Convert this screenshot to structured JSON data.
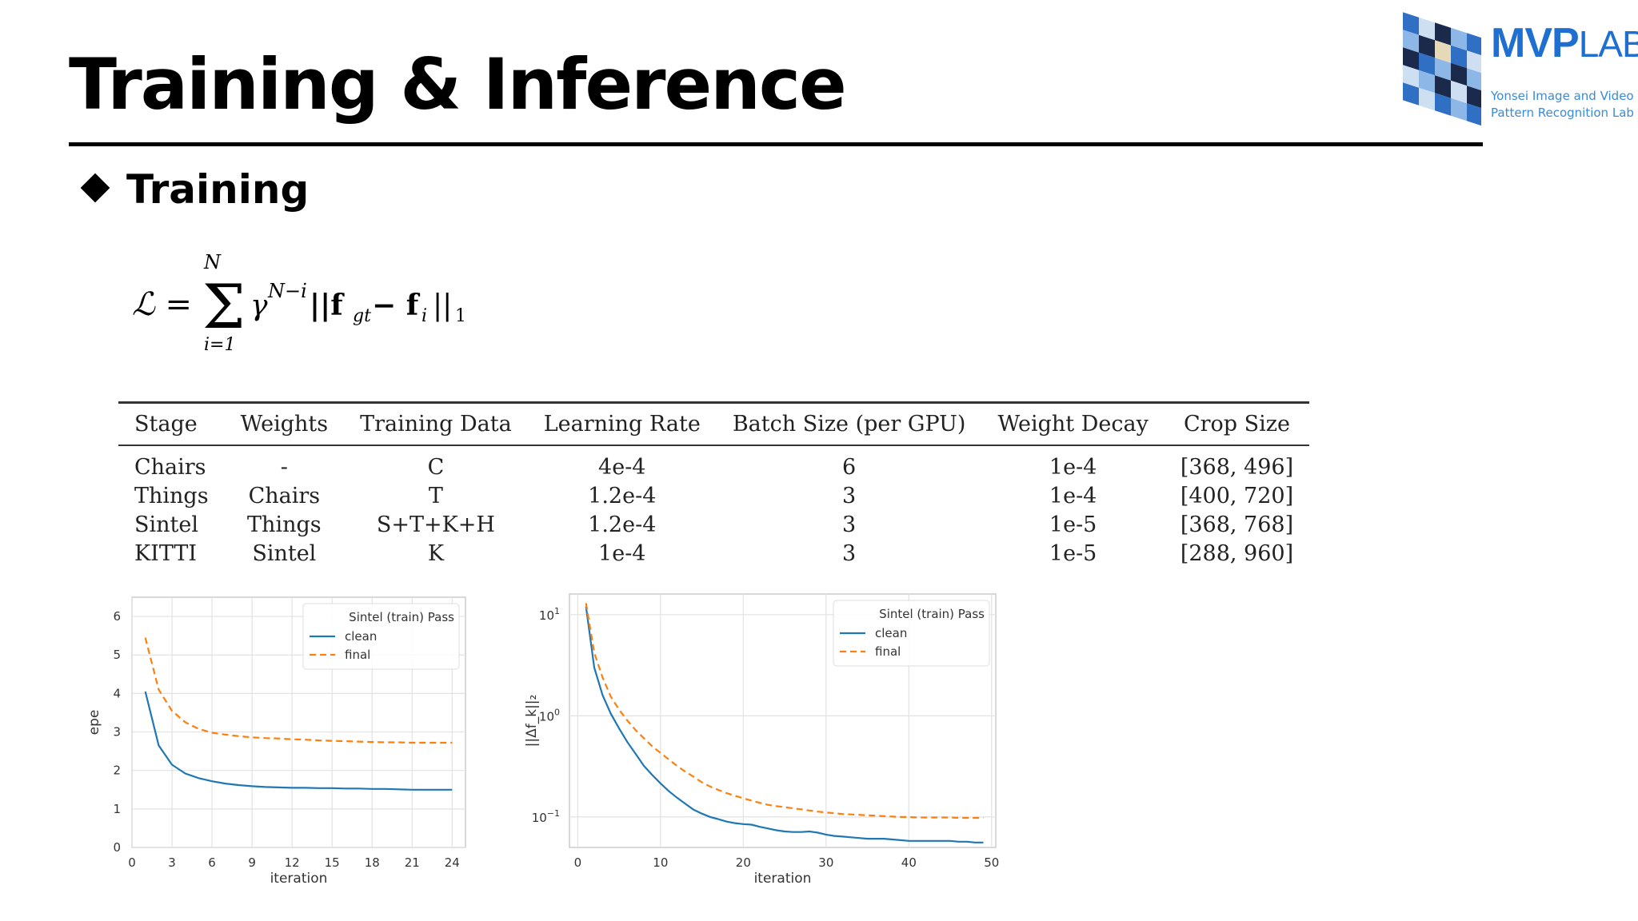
{
  "slide": {
    "title": "Training & Inference",
    "section": "Training"
  },
  "logo": {
    "word_bold": "MVP",
    "word_light": "LAB",
    "sub_line1": "Yonsei Image and Video",
    "sub_line2": "Pattern Recognition Lab",
    "brand_color": "#1f6fd0"
  },
  "formula": {
    "lhs": "ℒ = ",
    "upper_limit": "N",
    "lower_limit": "i=1",
    "body": "γ",
    "exponent": "N−i",
    "norm_open": "||f",
    "gt_sub": "gt",
    "minus": " − f",
    "i_sub": "i",
    "norm_close": "||",
    "norm_sub": "1"
  },
  "table": {
    "headers": [
      "Stage",
      "Weights",
      "Training Data",
      "Learning Rate",
      "Batch Size (per GPU)",
      "Weight Decay",
      "Crop Size"
    ],
    "rows": [
      [
        "Chairs",
        "-",
        "C",
        "4e-4",
        "6",
        "1e-4",
        "[368, 496]"
      ],
      [
        "Things",
        "Chairs",
        "T",
        "1.2e-4",
        "3",
        "1e-4",
        "[400, 720]"
      ],
      [
        "Sintel",
        "Things",
        "S+T+K+H",
        "1.2e-4",
        "3",
        "1e-5",
        "[368, 768]"
      ],
      [
        "KITTI",
        "Sintel",
        "K",
        "1e-4",
        "3",
        "1e-5",
        "[288, 960]"
      ]
    ]
  },
  "chart_data": [
    {
      "type": "line",
      "xlabel": "iteration",
      "ylabel": "epe",
      "xlim": [
        0,
        25
      ],
      "ylim": [
        0,
        6.5
      ],
      "xticks": [
        "0",
        "3",
        "6",
        "9",
        "12",
        "15",
        "18",
        "21",
        "24"
      ],
      "yticks": [
        "0",
        "1",
        "2",
        "3",
        "4",
        "5",
        "6"
      ],
      "grid": true,
      "legend_title": "Sintel (train) Pass",
      "legend_position": "top-right",
      "series": [
        {
          "name": "clean",
          "color": "#1f77b4",
          "dash": "solid",
          "x": [
            1,
            2,
            3,
            4,
            5,
            6,
            7,
            8,
            9,
            10,
            11,
            12,
            13,
            14,
            15,
            16,
            17,
            18,
            19,
            20,
            21,
            22,
            23,
            24
          ],
          "values": [
            4.05,
            2.65,
            2.15,
            1.92,
            1.8,
            1.72,
            1.66,
            1.62,
            1.59,
            1.57,
            1.56,
            1.55,
            1.55,
            1.54,
            1.54,
            1.53,
            1.53,
            1.52,
            1.52,
            1.51,
            1.5,
            1.5,
            1.5,
            1.5
          ]
        },
        {
          "name": "final",
          "color": "#ff7f0e",
          "dash": "dashed",
          "x": [
            1,
            2,
            3,
            4,
            5,
            6,
            7,
            8,
            9,
            10,
            11,
            12,
            13,
            14,
            15,
            16,
            17,
            18,
            19,
            20,
            21,
            22,
            23,
            24
          ],
          "values": [
            5.45,
            4.1,
            3.55,
            3.25,
            3.08,
            2.98,
            2.93,
            2.89,
            2.86,
            2.84,
            2.83,
            2.81,
            2.8,
            2.78,
            2.77,
            2.76,
            2.75,
            2.74,
            2.73,
            2.73,
            2.72,
            2.72,
            2.72,
            2.72
          ]
        }
      ]
    },
    {
      "type": "line",
      "xlabel": "iteration",
      "ylabel": "||Δf_k||₂",
      "y_scale": "log",
      "xlim": [
        -1,
        50.5
      ],
      "ylim": [
        0.05,
        16
      ],
      "xticks": [
        "0",
        "10",
        "20",
        "30",
        "40",
        "50"
      ],
      "yticks": [
        {
          "value": 10,
          "base": "10",
          "exp": "1"
        },
        {
          "value": 1,
          "base": "10",
          "exp": "0"
        },
        {
          "value": 0.1,
          "base": "10",
          "exp": "−1"
        }
      ],
      "grid": true,
      "legend_title": "Sintel (train) Pass",
      "legend_position": "top-right",
      "series": [
        {
          "name": "clean",
          "color": "#1f77b4",
          "dash": "solid",
          "x": [
            1,
            2,
            3,
            4,
            5,
            6,
            7,
            8,
            9,
            10,
            11,
            12,
            13,
            14,
            15,
            16,
            17,
            18,
            19,
            20,
            21,
            22,
            23,
            24,
            25,
            26,
            27,
            28,
            29,
            30,
            31,
            32,
            33,
            34,
            35,
            36,
            37,
            38,
            39,
            40,
            41,
            42,
            43,
            44,
            45,
            46,
            47,
            48,
            49
          ],
          "values": [
            12,
            3.0,
            1.6,
            1.05,
            0.75,
            0.55,
            0.42,
            0.32,
            0.26,
            0.215,
            0.18,
            0.155,
            0.135,
            0.118,
            0.108,
            0.1,
            0.095,
            0.09,
            0.087,
            0.085,
            0.084,
            0.08,
            0.077,
            0.074,
            0.072,
            0.071,
            0.071,
            0.072,
            0.07,
            0.067,
            0.065,
            0.064,
            0.063,
            0.062,
            0.061,
            0.061,
            0.061,
            0.06,
            0.059,
            0.058,
            0.058,
            0.058,
            0.058,
            0.058,
            0.058,
            0.057,
            0.057,
            0.056,
            0.056
          ]
        },
        {
          "name": "final",
          "color": "#ff7f0e",
          "dash": "dashed",
          "x": [
            1,
            2,
            3,
            4,
            5,
            6,
            7,
            8,
            9,
            10,
            11,
            12,
            13,
            14,
            15,
            16,
            17,
            18,
            19,
            20,
            21,
            22,
            23,
            24,
            25,
            26,
            27,
            28,
            29,
            30,
            31,
            32,
            33,
            34,
            35,
            36,
            37,
            38,
            39,
            40,
            41,
            42,
            43,
            44,
            45,
            46,
            47,
            48,
            49
          ],
          "values": [
            13,
            4.2,
            2.4,
            1.55,
            1.15,
            0.9,
            0.72,
            0.6,
            0.5,
            0.43,
            0.37,
            0.32,
            0.28,
            0.25,
            0.22,
            0.2,
            0.185,
            0.172,
            0.162,
            0.153,
            0.145,
            0.138,
            0.132,
            0.128,
            0.125,
            0.122,
            0.119,
            0.116,
            0.113,
            0.111,
            0.109,
            0.107,
            0.106,
            0.105,
            0.104,
            0.103,
            0.102,
            0.101,
            0.1,
            0.1,
            0.099,
            0.099,
            0.099,
            0.099,
            0.099,
            0.098,
            0.098,
            0.098,
            0.098
          ]
        }
      ]
    }
  ]
}
